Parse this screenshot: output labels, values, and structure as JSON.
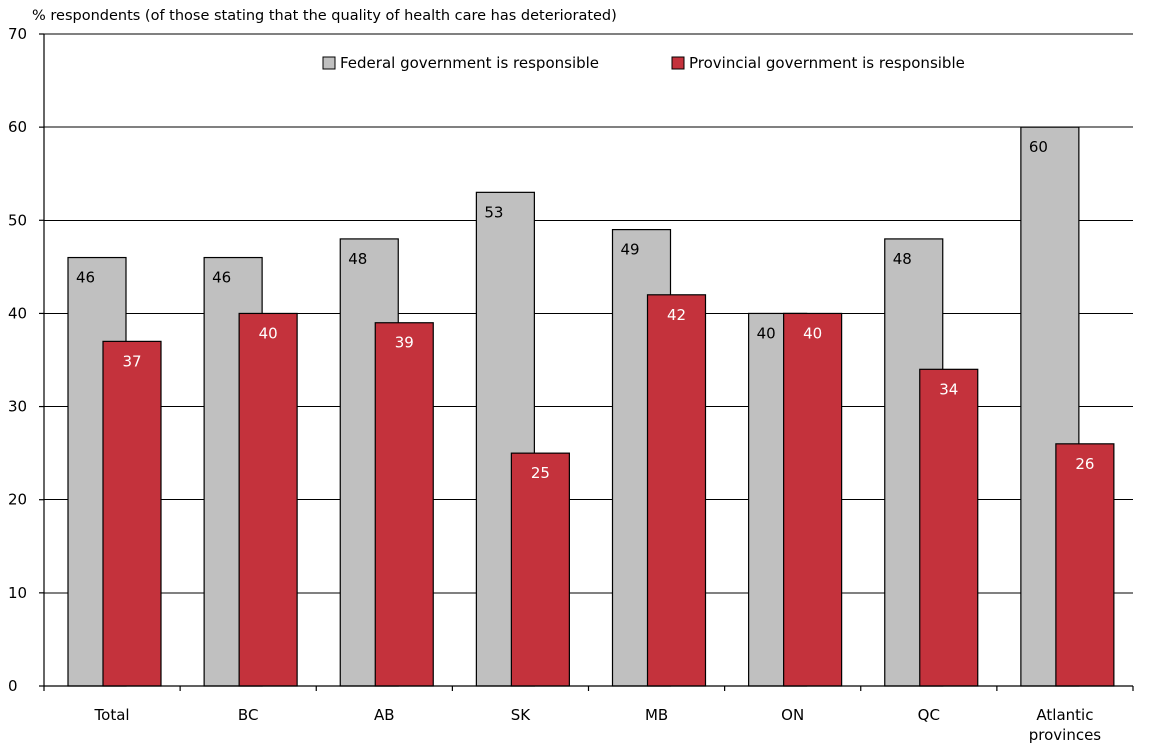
{
  "chart_data": {
    "type": "bar",
    "ylabel": "% respondents (of those stating that the quality of health care has deteriorated)",
    "categories": [
      [
        "Total"
      ],
      [
        "BC"
      ],
      [
        "AB"
      ],
      [
        "SK"
      ],
      [
        "MB"
      ],
      [
        "ON"
      ],
      [
        "QC"
      ],
      [
        "Atlantic",
        "provinces"
      ]
    ],
    "series": [
      {
        "name": "Federal government is responsible",
        "color": "#c0c0c0",
        "label_color": "#000000",
        "values": [
          46,
          46,
          48,
          53,
          49,
          40,
          48,
          60
        ]
      },
      {
        "name": "Provincial government is responsible",
        "color": "#c4323c",
        "label_color": "#ffffff",
        "values": [
          37,
          40,
          39,
          25,
          42,
          40,
          34,
          26
        ]
      }
    ],
    "ylim": [
      0,
      70
    ],
    "yticks": [
      0,
      10,
      20,
      30,
      40,
      50,
      60,
      70
    ],
    "grid": true,
    "legend_position": "top"
  }
}
